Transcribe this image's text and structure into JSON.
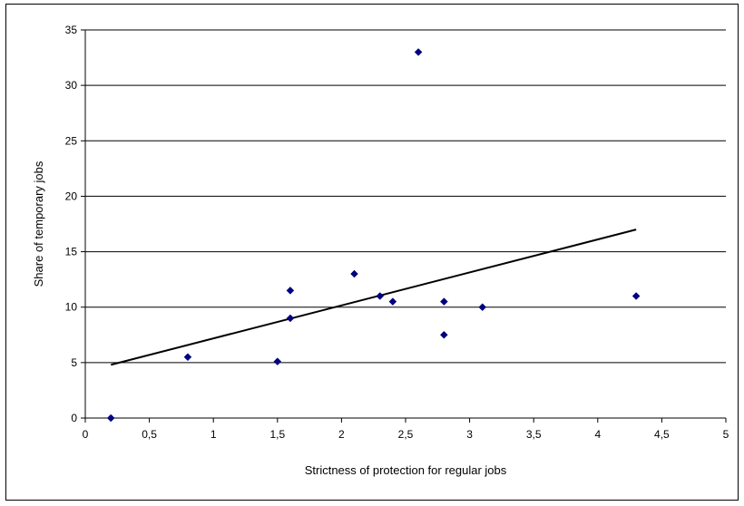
{
  "chart_data": {
    "type": "scatter",
    "title": "",
    "xlabel": "Strictness of protection for regular jobs",
    "ylabel": "Share of temporary jobs",
    "xlim": [
      0,
      5
    ],
    "ylim": [
      0,
      35
    ],
    "x_ticks": [
      "0",
      "0,5",
      "1",
      "1,5",
      "2",
      "2,5",
      "3",
      "3,5",
      "4",
      "4,5",
      "5"
    ],
    "y_ticks": [
      "0",
      "5",
      "10",
      "15",
      "20",
      "25",
      "30",
      "35"
    ],
    "grid": "horizontal",
    "legend": "none",
    "series": [
      {
        "marker": "diamond",
        "color": "#000080",
        "points": [
          {
            "x": 0.2,
            "y": 0.0
          },
          {
            "x": 0.8,
            "y": 5.5
          },
          {
            "x": 1.5,
            "y": 5.1
          },
          {
            "x": 1.6,
            "y": 11.5
          },
          {
            "x": 1.6,
            "y": 9.0
          },
          {
            "x": 2.1,
            "y": 13.0
          },
          {
            "x": 2.3,
            "y": 11.0
          },
          {
            "x": 2.4,
            "y": 10.5
          },
          {
            "x": 2.6,
            "y": 33.0
          },
          {
            "x": 2.8,
            "y": 10.5
          },
          {
            "x": 2.8,
            "y": 7.5
          },
          {
            "x": 3.1,
            "y": 10.0
          },
          {
            "x": 4.3,
            "y": 11.0
          }
        ]
      }
    ],
    "trendline": {
      "type": "linear",
      "color": "#000000",
      "points": [
        {
          "x": 0.2,
          "y": 4.8
        },
        {
          "x": 4.3,
          "y": 17.0
        }
      ]
    }
  }
}
